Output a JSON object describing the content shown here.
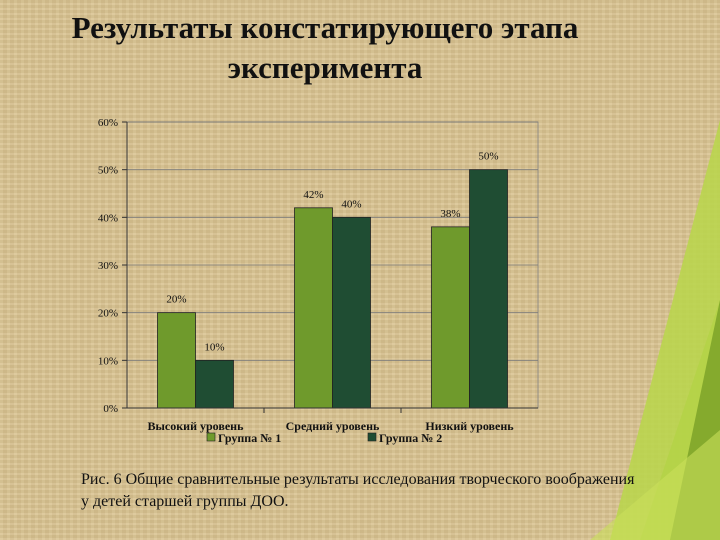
{
  "slide": {
    "title_line1": "Результаты констатирующего этапа",
    "title_line2": "эксперимента",
    "caption": "Рис. 6  Общие сравнительные результаты исследования творческого воображения у детей старшей группы ДОО."
  },
  "chart_data": {
    "type": "bar",
    "categories": [
      "Высокий уровень",
      "Средний уровень",
      "Низкий уровень"
    ],
    "series": [
      {
        "name": "Группа № 1",
        "values": [
          20,
          42,
          38
        ],
        "labels": [
          "20%",
          "42%",
          "38%"
        ],
        "color": "#6f9a2c"
      },
      {
        "name": "Группа № 2",
        "values": [
          10,
          40,
          50
        ],
        "labels": [
          "10%",
          "40%",
          "50%"
        ],
        "color": "#1f4d33"
      }
    ],
    "ylim": [
      0,
      60
    ],
    "yticks": [
      0,
      10,
      20,
      30,
      40,
      50,
      60
    ],
    "ytick_labels": [
      "0%",
      "10%",
      "20%",
      "30%",
      "40%",
      "50%",
      "60%"
    ],
    "grid": true,
    "legend_position": "bottom"
  },
  "colors": {
    "decor_green_light": "#b8d64a",
    "decor_green_dark": "#8fb52f"
  }
}
